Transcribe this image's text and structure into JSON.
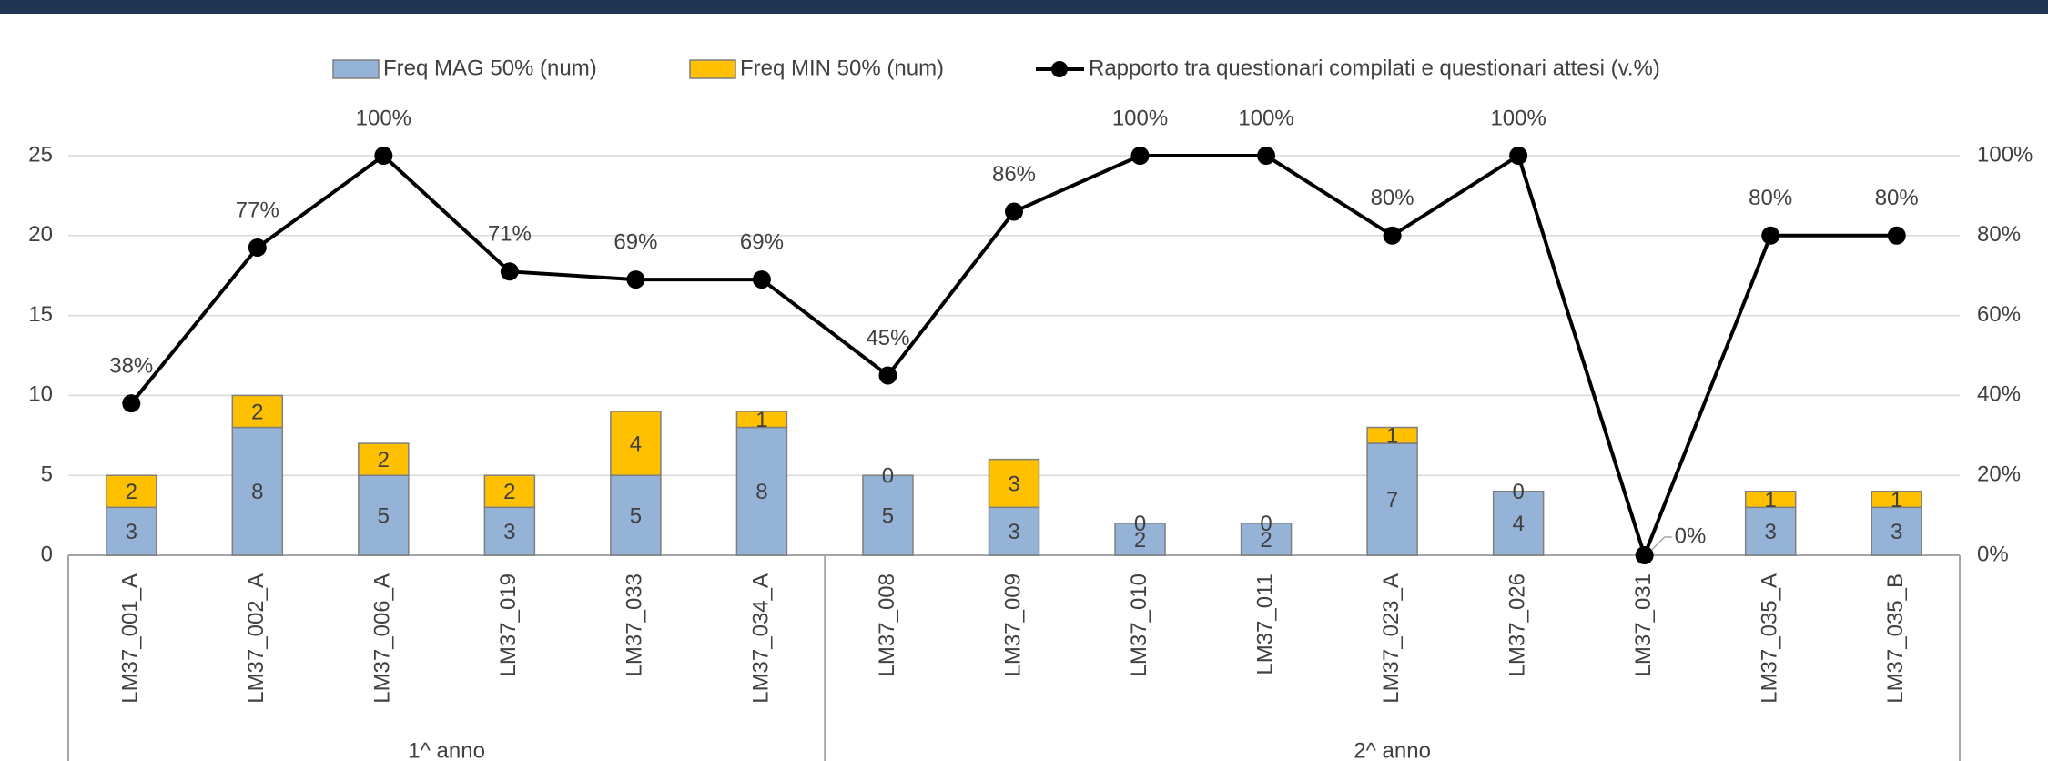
{
  "chart_data": {
    "type": "bar",
    "stacked": true,
    "categories": [
      "LM37_001_A",
      "LM37_002_A",
      "LM37_006_A",
      "LM37_019",
      "LM37_033",
      "LM37_034_A",
      "LM37_008",
      "LM37_009",
      "LM37_010",
      "LM37_011",
      "LM37_023_A",
      "LM37_026",
      "LM37_031",
      "LM37_035_A",
      "LM37_035_B"
    ],
    "groups": [
      {
        "label": "1^ anno",
        "size": 6
      },
      {
        "label": "2^ anno",
        "size": 9
      }
    ],
    "series": [
      {
        "name": "Freq MAG 50% (num)",
        "type": "bar",
        "color": "#95b3d7",
        "values": [
          3,
          8,
          5,
          3,
          5,
          8,
          5,
          3,
          2,
          2,
          7,
          4,
          0,
          3,
          3
        ]
      },
      {
        "name": "Freq MIN 50% (num)",
        "type": "bar",
        "color": "#ffc000",
        "values": [
          2,
          2,
          2,
          2,
          4,
          1,
          0,
          3,
          0,
          0,
          1,
          0,
          0,
          1,
          1
        ]
      },
      {
        "name": "Rapporto tra questionari compilati e questionari attesi (v.%)",
        "type": "line",
        "axis": "y2",
        "color": "#000000",
        "values": [
          38,
          77,
          100,
          71,
          69,
          69,
          45,
          86,
          100,
          100,
          80,
          100,
          0,
          80,
          80
        ],
        "value_labels": [
          "38%",
          "77%",
          "100%",
          "71%",
          "69%",
          "69%",
          "45%",
          "86%",
          "100%",
          "100%",
          "80%",
          "100%",
          "0%",
          "80%",
          "80%"
        ]
      }
    ],
    "ylim": [
      0,
      25
    ],
    "yticks": [
      0,
      5,
      10,
      15,
      20,
      25
    ],
    "y2lim": [
      0,
      100
    ],
    "y2ticks": [
      {
        "value": 0,
        "label": "0%"
      },
      {
        "value": 20,
        "label": "20%"
      },
      {
        "value": 40,
        "label": "40%"
      },
      {
        "value": 60,
        "label": "60%"
      },
      {
        "value": 80,
        "label": "80%"
      },
      {
        "value": 100,
        "label": "100%"
      }
    ],
    "grid": true,
    "legend": "top"
  }
}
